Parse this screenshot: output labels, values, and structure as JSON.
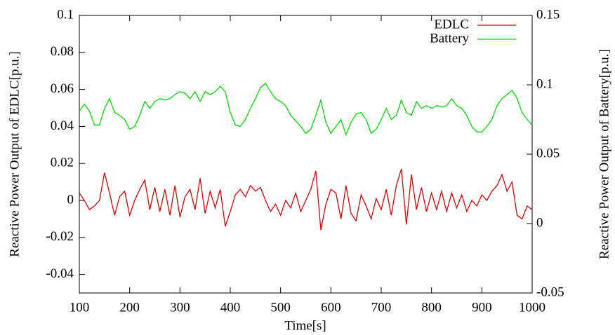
{
  "chart_data": {
    "type": "line",
    "xlabel": "Time[s]",
    "ylabel": "Reactive Power Output of EDLC[p.u.]",
    "y2label": "Reactive Power Output of Battery[p.u.]",
    "x": [
      100,
      110,
      120,
      130,
      140,
      150,
      160,
      170,
      180,
      190,
      200,
      210,
      220,
      230,
      240,
      250,
      260,
      270,
      280,
      290,
      300,
      310,
      320,
      330,
      340,
      350,
      360,
      370,
      380,
      390,
      400,
      410,
      420,
      430,
      440,
      450,
      460,
      470,
      480,
      490,
      500,
      510,
      520,
      530,
      540,
      550,
      560,
      570,
      580,
      590,
      600,
      610,
      620,
      630,
      640,
      650,
      660,
      670,
      680,
      690,
      700,
      710,
      720,
      730,
      740,
      750,
      760,
      770,
      780,
      790,
      800,
      810,
      820,
      830,
      840,
      850,
      860,
      870,
      880,
      890,
      900,
      910,
      920,
      930,
      940,
      950,
      960,
      970,
      980,
      990,
      1000
    ],
    "series": [
      {
        "name": "EDLC",
        "color": "#e00000",
        "values": [
          0.004,
          0.0,
          -0.005,
          -0.003,
          0.0,
          0.015,
          0.004,
          -0.008,
          0.002,
          0.005,
          -0.008,
          0.0,
          0.006,
          0.011,
          -0.005,
          0.007,
          -0.006,
          0.006,
          -0.008,
          0.008,
          -0.009,
          0.002,
          0.006,
          -0.005,
          0.012,
          -0.007,
          0.005,
          -0.004,
          0.006,
          -0.014,
          -0.006,
          0.003,
          0.006,
          0.002,
          0.008,
          0.005,
          0.007,
          0.0,
          -0.006,
          -0.002,
          -0.008,
          0.0,
          -0.004,
          0.004,
          -0.006,
          0.0,
          0.006,
          0.016,
          -0.016,
          -0.002,
          0.006,
          0.004,
          -0.01,
          0.008,
          -0.007,
          -0.011,
          0.003,
          -0.003,
          -0.01,
          0.001,
          -0.005,
          0.006,
          -0.008,
          0.008,
          0.017,
          -0.013,
          0.014,
          -0.005,
          0.007,
          -0.006,
          0.004,
          -0.005,
          0.005,
          -0.006,
          0.004,
          -0.004,
          0.003,
          -0.006,
          0.0,
          -0.003,
          0.003,
          0.0,
          0.005,
          0.008,
          0.014,
          0.005,
          0.01,
          -0.008,
          -0.01,
          -0.003,
          -0.005
        ]
      },
      {
        "name": "Battery",
        "color": "#00dd00",
        "axis": "y2",
        "values": [
          0.081,
          0.086,
          0.081,
          0.071,
          0.071,
          0.083,
          0.09,
          0.08,
          0.078,
          0.075,
          0.068,
          0.07,
          0.078,
          0.088,
          0.083,
          0.088,
          0.09,
          0.089,
          0.09,
          0.093,
          0.095,
          0.094,
          0.09,
          0.095,
          0.088,
          0.095,
          0.093,
          0.095,
          0.099,
          0.095,
          0.08,
          0.071,
          0.07,
          0.075,
          0.083,
          0.09,
          0.098,
          0.101,
          0.095,
          0.09,
          0.088,
          0.085,
          0.078,
          0.074,
          0.07,
          0.065,
          0.068,
          0.078,
          0.089,
          0.073,
          0.065,
          0.07,
          0.075,
          0.064,
          0.073,
          0.079,
          0.08,
          0.075,
          0.065,
          0.068,
          0.075,
          0.083,
          0.075,
          0.078,
          0.089,
          0.08,
          0.078,
          0.088,
          0.083,
          0.085,
          0.083,
          0.085,
          0.084,
          0.085,
          0.09,
          0.085,
          0.083,
          0.078,
          0.07,
          0.066,
          0.066,
          0.07,
          0.075,
          0.085,
          0.09,
          0.093,
          0.096,
          0.09,
          0.08,
          0.075,
          0.071
        ]
      }
    ],
    "xlim": [
      100,
      1000
    ],
    "xticks": [
      100,
      200,
      300,
      400,
      500,
      600,
      700,
      800,
      900,
      1000
    ],
    "ylim": [
      -0.05,
      0.1
    ],
    "yticks": [
      -0.04,
      -0.02,
      0,
      0.02,
      0.04,
      0.06,
      0.08,
      0.1
    ],
    "y2lim": [
      -0.05,
      0.15
    ],
    "y2ticks": [
      -0.05,
      0,
      0.05,
      0.1,
      0.15
    ],
    "legend": "upper right",
    "grid": false
  }
}
